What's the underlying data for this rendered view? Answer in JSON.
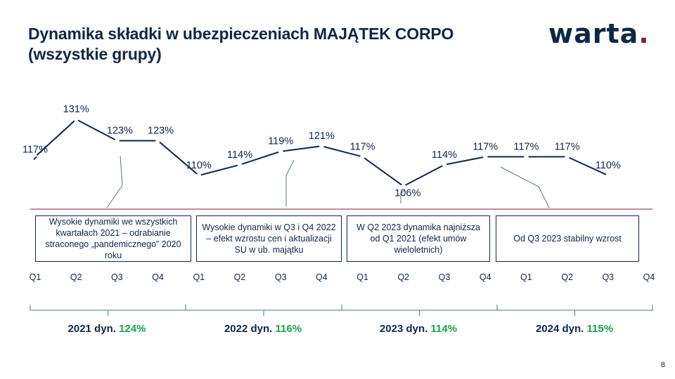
{
  "title": "Dynamika składki w ubezpieczeniach MAJĄTEK CORPO (wszystkie grupy)",
  "logo": {
    "text": "warta",
    "dot": "."
  },
  "page_number": "8",
  "chart_data": {
    "type": "line",
    "x": [
      "Q1",
      "Q2",
      "Q3",
      "Q4",
      "Q1",
      "Q2",
      "Q3",
      "Q4",
      "Q1",
      "Q2",
      "Q3",
      "Q4",
      "Q1",
      "Q2",
      "Q3",
      "Q4"
    ],
    "values": [
      117,
      131,
      123,
      123,
      110,
      114,
      119,
      121,
      117,
      106,
      114,
      117,
      117,
      117,
      110,
      null
    ],
    "labels": [
      "117%",
      "131%",
      "123%",
      "123%",
      "110%",
      "114%",
      "119%",
      "121%",
      "117%",
      "106%",
      "114%",
      "117%",
      "117%",
      "117%",
      "110%",
      ""
    ],
    "line_color": "#0f2747",
    "reference_line_color": "#8b1a3b"
  },
  "annotations": [
    {
      "text": "Wysokie dynamiki we wszystkich kwartałach 2021 – odrabianie straconego „pandemicznego” 2020 roku"
    },
    {
      "text": "Wysokie dynamiki w Q3 i Q4 2022 – efekt wzrostu cen i aktualizacji SU w ub. majątku"
    },
    {
      "text": "W Q2 2023 dynamika najniższa od Q1 2021 (efekt umów wieloletnich)"
    },
    {
      "text": "Od Q3 2023 stabilny wzrost"
    }
  ],
  "years": [
    {
      "label": "2021 dyn.",
      "dyn": "124%"
    },
    {
      "label": "2022 dyn.",
      "dyn": "116%"
    },
    {
      "label": "2023 dyn.",
      "dyn": "114%"
    },
    {
      "label": "2024 dyn.",
      "dyn": "115%"
    }
  ],
  "colors": {
    "navy": "#0f2747",
    "green": "#1aa44a",
    "maroon": "#8b1a3b",
    "leader": "#4a7a8c"
  }
}
